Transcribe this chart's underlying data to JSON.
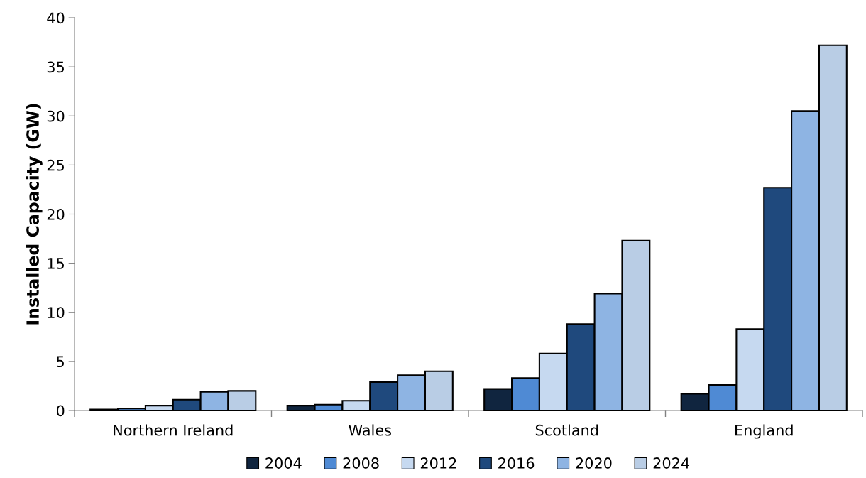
{
  "chart_data": {
    "type": "bar",
    "ylabel": "Installed Capacity (GW)",
    "categories": [
      "Northern Ireland",
      "Wales",
      "Scotland",
      "England"
    ],
    "series": [
      {
        "name": "2004",
        "color": "#10253f",
        "values": [
          0.1,
          0.5,
          2.2,
          1.7
        ]
      },
      {
        "name": "2008",
        "color": "#4f8ad4",
        "values": [
          0.2,
          0.6,
          3.3,
          2.6
        ]
      },
      {
        "name": "2012",
        "color": "#c6d9f0",
        "values": [
          0.5,
          1.0,
          5.8,
          8.3
        ]
      },
      {
        "name": "2016",
        "color": "#1f497d",
        "values": [
          1.1,
          2.9,
          8.8,
          22.7
        ]
      },
      {
        "name": "2020",
        "color": "#8eb4e3",
        "values": [
          1.9,
          3.6,
          11.9,
          30.5
        ]
      },
      {
        "name": "2024",
        "color": "#b9cde5",
        "values": [
          2.0,
          4.0,
          17.3,
          37.2
        ]
      }
    ],
    "ylim": [
      0,
      40
    ],
    "yticks": [
      0,
      5,
      10,
      15,
      20,
      25,
      30,
      35,
      40
    ],
    "grid": false,
    "legend": "bottom"
  }
}
